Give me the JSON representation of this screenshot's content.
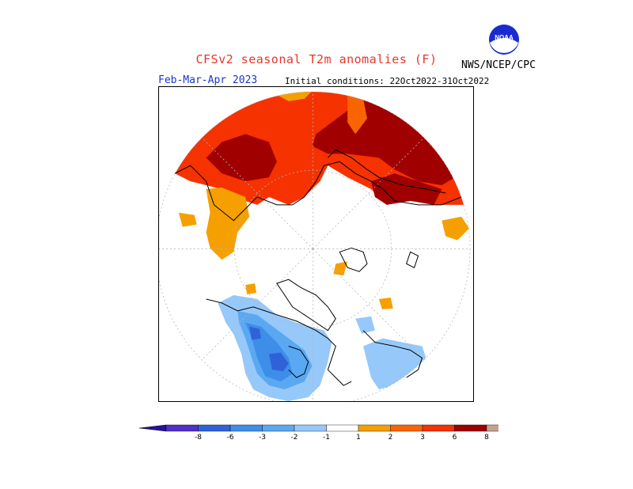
{
  "header": {
    "title": "CFSv2 seasonal T2m anomalies (F)",
    "org": "NWS/NCEP/CPC",
    "period": "Feb-Mar-Apr 2023",
    "initial_conditions": "Initial conditions: 22Oct2022-31Oct2022",
    "logo_text": "NOAA"
  },
  "colorbar": {
    "levels": [
      {
        "label": "-8",
        "color": "#5030c8"
      },
      {
        "label": "-6",
        "color": "#2f62d8"
      },
      {
        "label": "-3",
        "color": "#3d8ee8"
      },
      {
        "label": "-2",
        "color": "#5aa8f2"
      },
      {
        "label": "-1",
        "color": "#96c8fa"
      },
      {
        "label": "",
        "color": "#ffffff"
      },
      {
        "label": "1",
        "color": "#f5a000"
      },
      {
        "label": "2",
        "color": "#fa6400"
      },
      {
        "label": "3",
        "color": "#f53200"
      },
      {
        "label": "6",
        "color": "#a00000"
      },
      {
        "label": "8",
        "color": "#c8a090"
      }
    ],
    "low_end_color": "#2a10a0",
    "high_end_color": "#8a5040"
  },
  "map": {
    "projection": "north polar stereographic",
    "colors": {
      "warm_dark": "#a00000",
      "warm_mid": "#f53200",
      "warm_light": "#fa6400",
      "warm_pale": "#f5a000",
      "cool_light": "#96c8fa",
      "cool_mid": "#5aa8f2",
      "cool_strong": "#3d8ee8",
      "cool_dark": "#2f62d8"
    }
  }
}
